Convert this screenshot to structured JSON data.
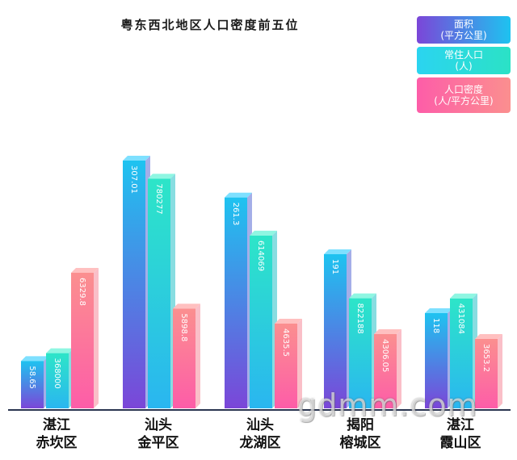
{
  "chart_data": {
    "type": "bar",
    "title": "粤东西北地区人口密度前五位",
    "categories": [
      [
        "湛江",
        "赤坎区"
      ],
      [
        "汕头",
        "金平区"
      ],
      [
        "汕头",
        "龙湖区"
      ],
      [
        "揭阳",
        "榕城区"
      ],
      [
        "湛江",
        "霞山区"
      ]
    ],
    "series": [
      {
        "name_lines": [
          "面积",
          "(平方公里)"
        ],
        "values": [
          58.65,
          307.0,
          261.3,
          191,
          118
        ],
        "labels": [
          "58.65",
          "307.01",
          "261.3",
          "191",
          "118"
        ],
        "color_top": "#1ec3f0",
        "color_bottom": "#7b46d8"
      },
      {
        "name_lines": [
          "常住人口",
          "(人)"
        ],
        "values": [
          68.4,
          284.6,
          214.1,
          136.4,
          136.2
        ],
        "labels": [
          "368000",
          "780277",
          "614069",
          "822188",
          "431084"
        ],
        "color_top": "#2de5c8",
        "color_bottom": "#2ab6f0"
      },
      {
        "name_lines": [
          "人口密度",
          "(人/平方公里)"
        ],
        "values": [
          168.0,
          123.6,
          105.0,
          92.0,
          86.0
        ],
        "labels": [
          "6329.8",
          "5898.8",
          "4635.5",
          "4306.05",
          "3653.2"
        ],
        "color_top": "#fb8f8f",
        "color_bottom": "#fd5da8"
      }
    ]
  },
  "watermark": "gdmm.com"
}
